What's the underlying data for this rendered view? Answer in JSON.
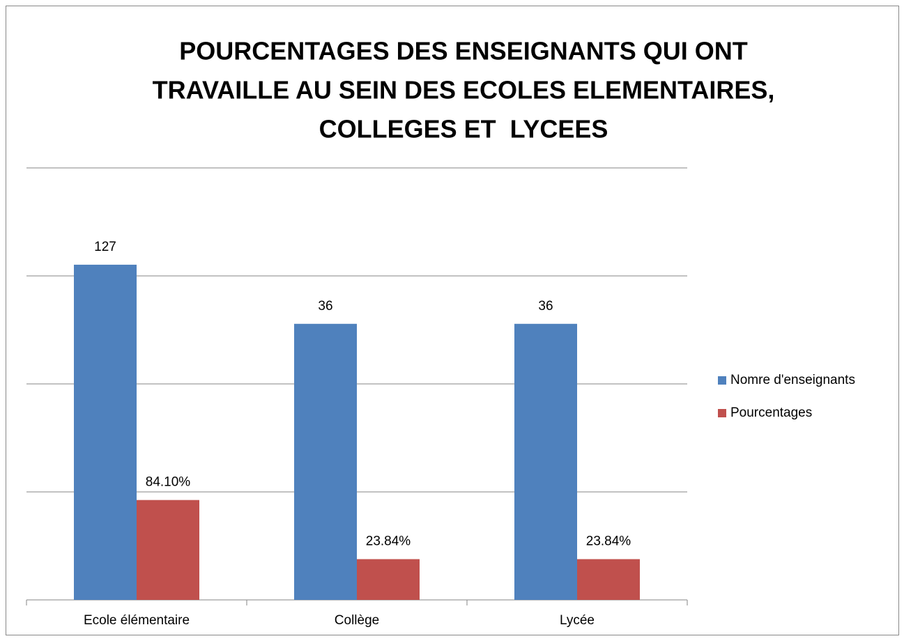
{
  "chart_data": {
    "type": "bar",
    "title": [
      "POURCENTAGES DES ENSEIGNANTS QUI ONT",
      "TRAVAILLE AU SEIN DES ECOLES ELEMENTAIRES,",
      "COLLEGES ET  LYCEES"
    ],
    "categories": [
      "Ecole élémentaire",
      "Collège",
      "Lycée"
    ],
    "series": [
      {
        "name": "Nomre d'enseignants",
        "color": "#4f81bd",
        "values": [
          127,
          36,
          36
        ]
      },
      {
        "name": "Pourcentages",
        "color": "#c0504d",
        "values": [
          0.841,
          0.2384,
          0.2384
        ],
        "value_labels": [
          "84.10%",
          "23.84%",
          "23.84%"
        ]
      }
    ],
    "log_scale": true,
    "ylim": [
      0.1,
      1000
    ],
    "yticks": [
      0.1,
      1,
      10,
      100,
      1000
    ],
    "grid": true,
    "legend": "right"
  }
}
